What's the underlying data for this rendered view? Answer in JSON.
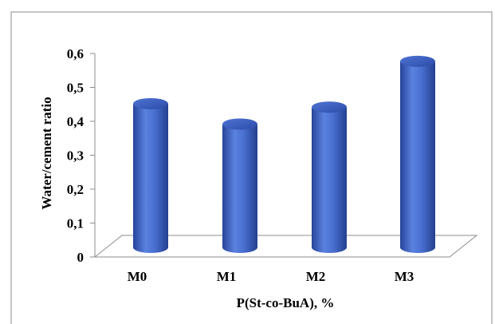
{
  "chart_data": {
    "type": "bar",
    "style": "3d-cylinder",
    "categories": [
      "M0",
      "M1",
      "M2",
      "M3"
    ],
    "values": [
      0.48,
      0.42,
      0.47,
      0.605
    ],
    "xlabel": "P(St-co-BuA), %",
    "ylabel": "Water/cement ratio",
    "ylim": [
      0,
      0.6
    ],
    "yticks": [
      "0",
      "0,1",
      "0,2",
      "0,3",
      "0,4",
      "0,5",
      "0,6"
    ],
    "grid": false,
    "legend": "none",
    "bar_color": "#3a63c9"
  }
}
